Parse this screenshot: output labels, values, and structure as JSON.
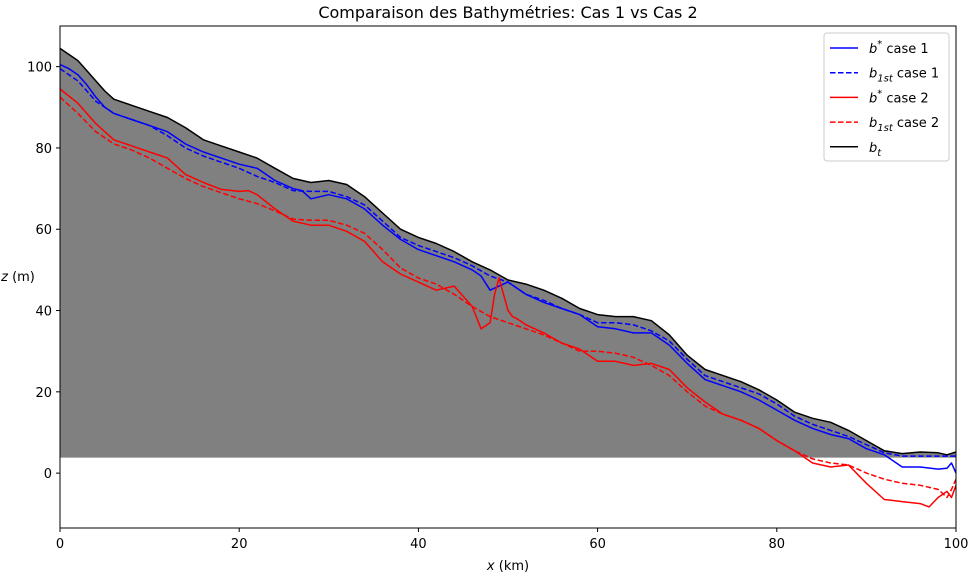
{
  "chart_data": {
    "type": "line",
    "title": "Comparaison des Bathymétries: Cas 1 vs Cas 2",
    "xlabel_var": "x",
    "xlabel_unit": " (km)",
    "ylabel_var": "z",
    "ylabel_unit": " (m)",
    "xlim": [
      0,
      100
    ],
    "ylim": [
      -13.5,
      110
    ],
    "xticks": [
      0,
      20,
      40,
      60,
      80,
      100
    ],
    "yticks": [
      0,
      20,
      40,
      60,
      80,
      100
    ],
    "grid": false,
    "legend_position": "top-right",
    "fill": {
      "color": "#808080",
      "baseline": 3.8
    },
    "series": [
      {
        "id": "bt",
        "name_base": "b",
        "name_sub": "t",
        "name_sup": "",
        "name_suffix": "",
        "color": "#000000",
        "dash": "solid",
        "x": [
          0,
          1,
          2,
          3,
          4,
          5,
          6,
          8,
          10,
          12,
          14,
          16,
          18,
          20,
          22,
          24,
          26,
          28,
          30,
          32,
          34,
          36,
          38,
          40,
          42,
          44,
          46,
          48,
          50,
          52,
          54,
          56,
          58,
          60,
          62,
          64,
          66,
          68,
          70,
          72,
          74,
          76,
          78,
          80,
          82,
          84,
          86,
          88,
          90,
          92,
          94,
          96,
          98,
          99,
          100
        ],
        "y": [
          104.5,
          103,
          101.5,
          99,
          96.5,
          94,
          92,
          90.5,
          89,
          87.5,
          85,
          82,
          80.5,
          79,
          77.5,
          75,
          72.5,
          71.5,
          72,
          71,
          68,
          64,
          60,
          58,
          56.5,
          54.5,
          52,
          50,
          47.5,
          46.5,
          45,
          43,
          40.5,
          39,
          38.5,
          38.5,
          37.5,
          34,
          29,
          25.5,
          24,
          22.5,
          20.5,
          18,
          15,
          13.5,
          12.5,
          10.5,
          8,
          5.5,
          4.8,
          5.2,
          5,
          4.5,
          5.2
        ]
      },
      {
        "id": "bstar1",
        "name_base": "b",
        "name_sub": "",
        "name_sup": "*",
        "name_suffix": " case 1",
        "color": "#0000ff",
        "dash": "solid",
        "x": [
          0,
          1,
          2,
          3,
          4,
          5,
          6,
          8,
          10,
          12,
          14,
          16,
          18,
          20,
          22,
          24,
          26,
          27,
          28,
          30,
          32,
          34,
          36,
          38,
          40,
          42,
          44,
          46,
          47,
          48,
          49,
          50,
          52,
          54,
          56,
          58,
          60,
          62,
          64,
          66,
          68,
          70,
          72,
          74,
          76,
          78,
          80,
          82,
          84,
          86,
          88,
          90,
          92,
          94,
          96,
          98,
          99,
          99.5,
          100
        ],
        "y": [
          100.5,
          99.5,
          98,
          95.5,
          92.5,
          90,
          88.5,
          87,
          85.5,
          84,
          81,
          79,
          77.5,
          76,
          75,
          72,
          70,
          69.5,
          67.5,
          68.5,
          67.5,
          65,
          61,
          57.5,
          55,
          53.5,
          52,
          50,
          48.5,
          45,
          46,
          47,
          44,
          42,
          40.5,
          39,
          36,
          35.5,
          34.5,
          34.5,
          31.5,
          27,
          23,
          21.5,
          20,
          18,
          15.5,
          13,
          11,
          9.5,
          8.5,
          6,
          4.5,
          1.5,
          1.5,
          1,
          1.2,
          2.5,
          0
        ]
      },
      {
        "id": "b1st1",
        "name_base": "b",
        "name_sub": "1st",
        "name_sup": "",
        "name_suffix": " case 1",
        "color": "#0000ff",
        "dash": "dashed",
        "x": [
          0,
          2,
          4,
          6,
          8,
          10,
          12,
          14,
          16,
          18,
          20,
          22,
          24,
          26,
          28,
          30,
          32,
          34,
          36,
          38,
          40,
          42,
          44,
          46,
          48,
          50,
          52,
          54,
          56,
          58,
          60,
          62,
          64,
          66,
          68,
          70,
          72,
          74,
          76,
          78,
          80,
          82,
          84,
          86,
          88,
          90,
          92,
          94,
          96,
          98,
          100
        ],
        "y": [
          99.5,
          96.5,
          91.5,
          88.5,
          87,
          85.5,
          83,
          80,
          78,
          76.5,
          75,
          73,
          71.5,
          69.5,
          69.3,
          69.3,
          68,
          66,
          62,
          58,
          56,
          54.5,
          53,
          51,
          48.5,
          47,
          44,
          42.5,
          40.5,
          39,
          37,
          37,
          36.5,
          35,
          32.5,
          28,
          24,
          22.5,
          21,
          19.5,
          17,
          14,
          12,
          10.5,
          9,
          7,
          5,
          4.2,
          4.2,
          4.2,
          4.2
        ]
      },
      {
        "id": "bstar2",
        "name_base": "b",
        "name_sub": "",
        "name_sup": "*",
        "name_suffix": " case 2",
        "color": "#ff0000",
        "dash": "solid",
        "x": [
          0,
          2,
          4,
          6,
          8,
          10,
          12,
          14,
          16,
          18,
          20,
          21,
          22,
          24,
          26,
          28,
          30,
          32,
          34,
          36,
          38,
          40,
          42,
          44,
          46,
          47,
          48,
          48.5,
          49,
          49.5,
          50,
          50.5,
          51,
          52,
          54,
          56,
          58,
          60,
          62,
          64,
          66,
          68,
          70,
          72,
          74,
          76,
          78,
          80,
          82,
          84,
          86,
          88,
          90,
          92,
          94,
          96,
          97,
          98,
          99,
          99.5,
          100
        ],
        "y": [
          94.5,
          91,
          86,
          82,
          80.5,
          79,
          77.5,
          73.5,
          71.5,
          69.8,
          69.3,
          69.5,
          68.5,
          65,
          62,
          61,
          61,
          59.5,
          57,
          52,
          49,
          47,
          45,
          46,
          41,
          35.5,
          37,
          44,
          48,
          44,
          40,
          38.5,
          38,
          36.5,
          34.5,
          32,
          30.5,
          27.5,
          27.5,
          26.5,
          27,
          25.5,
          21,
          17.5,
          14.5,
          13,
          11,
          8,
          5.5,
          2.5,
          1.5,
          2,
          -2.5,
          -6.5,
          -7,
          -7.5,
          -8.3,
          -6,
          -4.5,
          -6,
          -3
        ]
      },
      {
        "id": "b1st2",
        "name_base": "b",
        "name_sub": "1st",
        "name_sup": "",
        "name_suffix": " case 2",
        "color": "#ff0000",
        "dash": "dashed",
        "x": [
          0,
          2,
          4,
          6,
          8,
          10,
          12,
          14,
          16,
          18,
          20,
          22,
          24,
          26,
          28,
          30,
          32,
          34,
          36,
          38,
          40,
          42,
          44,
          46,
          48,
          50,
          52,
          54,
          56,
          58,
          60,
          62,
          64,
          66,
          68,
          70,
          72,
          74,
          76,
          78,
          80,
          82,
          84,
          86,
          88,
          90,
          92,
          94,
          96,
          98,
          99,
          99.5,
          100
        ],
        "y": [
          92.5,
          88.5,
          84,
          81,
          79.5,
          77.5,
          75,
          72.5,
          70.5,
          69,
          67.5,
          66.3,
          64.5,
          62.5,
          62.2,
          62.2,
          61,
          59,
          55,
          50.5,
          48,
          46.5,
          44,
          41,
          38.5,
          37,
          35.5,
          34,
          32,
          30,
          30,
          29.5,
          28.5,
          26.5,
          24,
          20,
          16.5,
          14.5,
          13,
          11,
          8,
          5.5,
          3.5,
          2.5,
          2,
          0,
          -1.5,
          -2.5,
          -3,
          -4,
          -6,
          -4,
          -1.5
        ]
      }
    ]
  }
}
